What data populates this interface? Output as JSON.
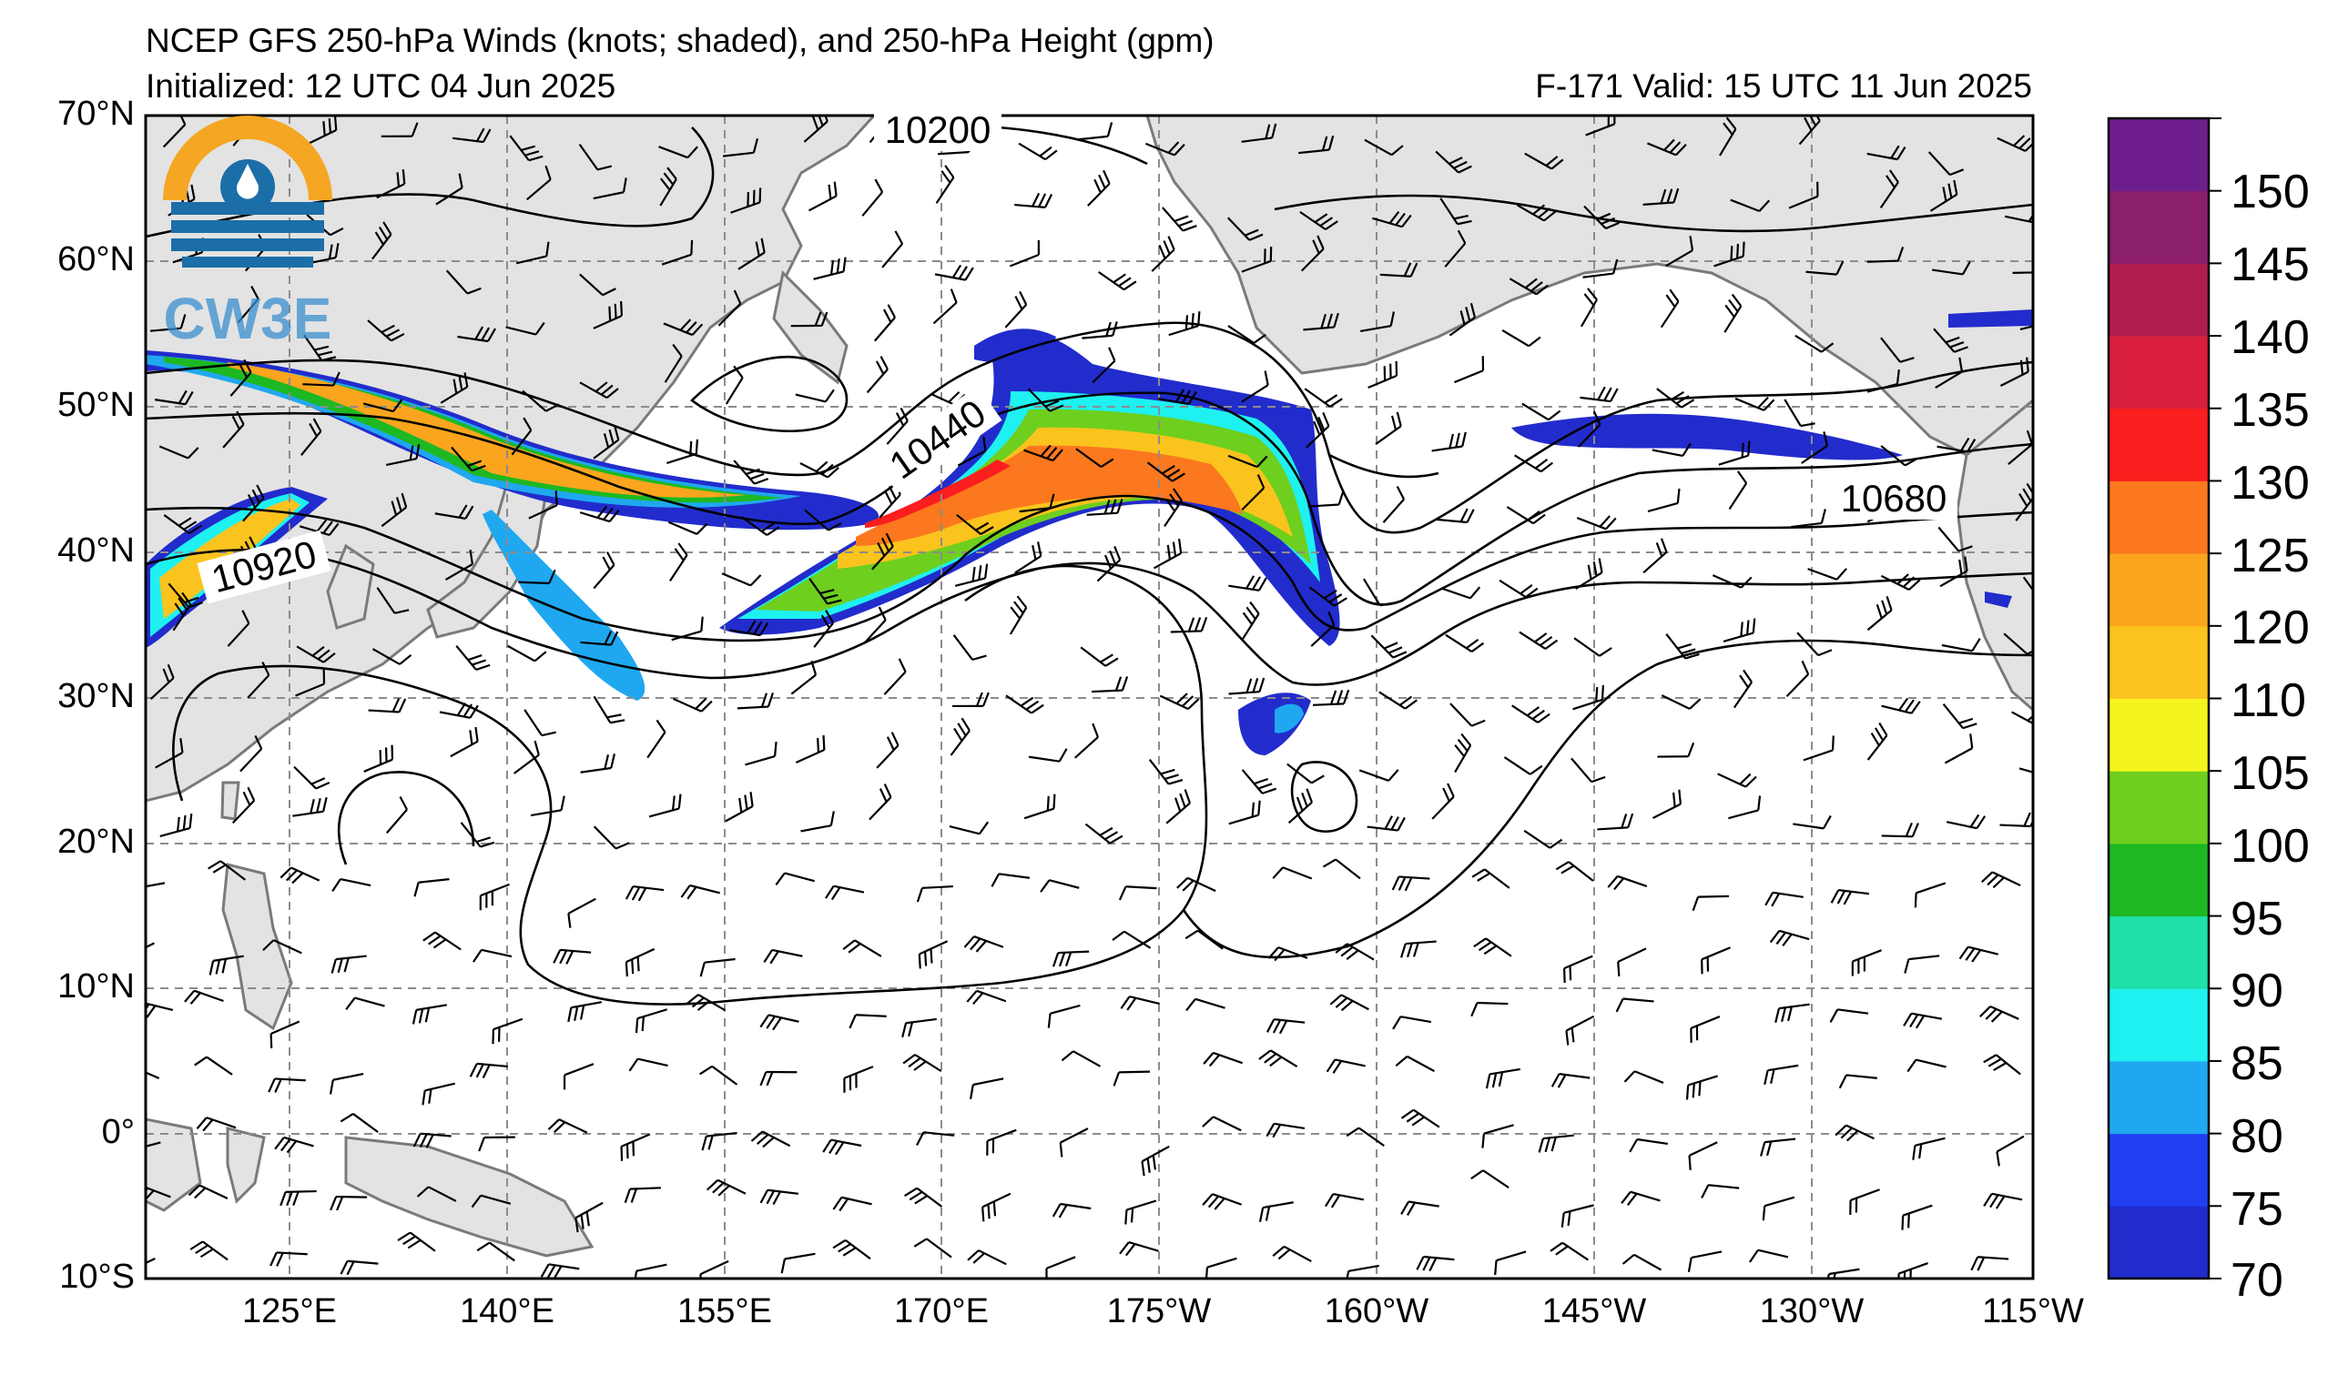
{
  "title": {
    "line1": "NCEP GFS 250-hPa Winds (knots; shaded), and 250-hPa Height (gpm)",
    "line2": "Initialized: 12 UTC 04 Jun 2025",
    "valid": "F-171  Valid: 15 UTC 11 Jun 2025"
  },
  "logo": {
    "text": "CW3E",
    "ring_color": "#f5a623",
    "wave_color": "#1b6ea8"
  },
  "map": {
    "lat_labels": [
      "70°N",
      "60°N",
      "50°N",
      "40°N",
      "30°N",
      "20°N",
      "10°N",
      "0°",
      "10°S"
    ],
    "lon_labels": [
      "125°E",
      "140°E",
      "155°E",
      "170°E",
      "175°W",
      "160°W",
      "145°W",
      "130°W",
      "115°W"
    ],
    "contour_labels": [
      "10200",
      "10440",
      "10920",
      "10680"
    ],
    "land_color": "#e3e3e3",
    "coast_color": "#7a7a7a",
    "grid_color": "#8c8c8c"
  },
  "colorbar": {
    "labels": [
      "150",
      "145",
      "140",
      "135",
      "130",
      "125",
      "120",
      "110",
      "105",
      "100",
      "95",
      "90",
      "85",
      "80",
      "75",
      "70"
    ],
    "colors": [
      "#222ccc",
      "#1f3ff0",
      "#1fa8f0",
      "#1ff0f0",
      "#1ee0a8",
      "#1db822",
      "#6ecf1e",
      "#f5f51e",
      "#fbc31e",
      "#fba51e",
      "#fb781e",
      "#fb1e1e",
      "#d81e3c",
      "#b01e50",
      "#8c1e6e",
      "#6e1e8c"
    ]
  }
}
